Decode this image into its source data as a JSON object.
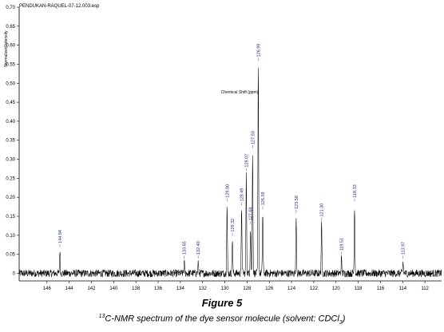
{
  "chart_data": {
    "type": "line",
    "title": "PENDUKAN-RAQUEL-07-12.003.esp",
    "xlabel": "Chemical Shift (ppm)",
    "ylabel": "Normalized Intensity",
    "xlim": [
      148.5,
      110.5
    ],
    "ylim": [
      -0.02,
      0.7
    ],
    "x_ticks": [
      146,
      144,
      142,
      140,
      138,
      136,
      134,
      132,
      130,
      128,
      126,
      124,
      122,
      120,
      118,
      116,
      114,
      112
    ],
    "y_ticks": [
      "0",
      "0.05",
      "0.10",
      "0.15",
      "0.20",
      "0.25",
      "0.30",
      "0.35",
      "0.40",
      "0.45",
      "0.50",
      "0.55",
      "0.60",
      "0.65",
      "0.70"
    ],
    "peaks": [
      {
        "shift": 144.84,
        "intensity": 0.06,
        "label": "144.84"
      },
      {
        "shift": 133.65,
        "intensity": 0.03,
        "label": "133.65"
      },
      {
        "shift": 132.4,
        "intensity": 0.03,
        "label": "132.40"
      },
      {
        "shift": 129.8,
        "intensity": 0.18,
        "label": "129.80"
      },
      {
        "shift": 129.32,
        "intensity": 0.09,
        "label": "129.32"
      },
      {
        "shift": 128.49,
        "intensity": 0.17,
        "label": "128.49"
      },
      {
        "shift": 128.07,
        "intensity": 0.26,
        "label": "128.07"
      },
      {
        "shift": 127.69,
        "intensity": 0.12,
        "label": "127.69"
      },
      {
        "shift": 127.5,
        "intensity": 0.32,
        "label": "127.50"
      },
      {
        "shift": 126.99,
        "intensity": 0.55,
        "label": "126.99"
      },
      {
        "shift": 126.59,
        "intensity": 0.16,
        "label": "126.59"
      },
      {
        "shift": 123.58,
        "intensity": 0.15,
        "label": "123.58"
      },
      {
        "shift": 121.3,
        "intensity": 0.13,
        "label": "121.30"
      },
      {
        "shift": 119.51,
        "intensity": 0.04,
        "label": "119.51"
      },
      {
        "shift": 118.33,
        "intensity": 0.18,
        "label": "118.33"
      },
      {
        "shift": 113.97,
        "intensity": 0.03,
        "label": "113.97"
      }
    ],
    "noise_level": 0.01,
    "grid": false,
    "colors": {
      "trace": "#000000",
      "peak_label": "#1f2f8f",
      "axis": "#000000"
    }
  },
  "caption": {
    "label": "Figure 5",
    "iso": "13",
    "text_a": "C-NMR spectrum of the dye sensor molecule (solvent: CDCl",
    "sub": "3",
    "text_b": ")"
  }
}
